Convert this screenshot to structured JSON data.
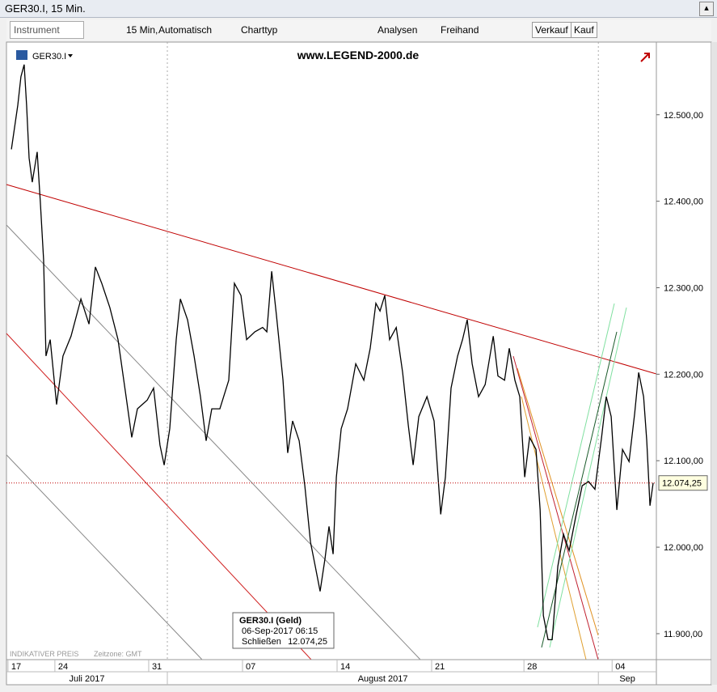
{
  "window": {
    "title": "GER30.I, 15 Min."
  },
  "toolbar": {
    "instrument_placeholder": "Instrument",
    "interval": "15 Min,",
    "scale": "Automatisch",
    "chart_type": "Charttyp",
    "analyses": "Analysen",
    "freehand": "Freihand",
    "sell": "Verkauf",
    "buy": "Kauf"
  },
  "chart_data": {
    "type": "line",
    "title": "www.LEGEND-2000.de",
    "series": [
      {
        "name": "GER30.I",
        "color": "#000000",
        "x": [
          -0.34,
          0,
          0.17,
          0.34,
          0.47,
          0.6,
          0.77,
          1.03,
          1.2,
          1.37,
          1.5,
          1.72,
          2.06,
          2.4,
          2.83,
          3.35,
          3.78,
          4.12,
          4.46,
          4.89,
          5.32,
          5.75,
          6.05,
          6.35,
          6.87,
          7.21,
          7.55,
          7.77,
          8.07,
          8.41,
          8.63,
          9.01,
          9.36,
          9.7,
          10,
          10.3,
          10.73,
          11.2,
          11.5,
          11.85,
          12.15,
          12.58,
          13,
          13.22,
          13.48,
          13.73,
          14.08,
          14.33,
          14.59,
          14.94,
          15.24,
          15.54,
          15.79,
          16.05,
          16.31,
          16.52,
          16.74,
          16.91,
          17.17,
          17.51,
          17.94,
          18.37,
          18.71,
          19.01,
          19.23,
          19.48,
          19.74,
          20.09,
          20.43,
          20.73,
          20.99,
          21.29,
          21.72,
          22.1,
          22.45,
          22.7,
          23,
          23.35,
          23.61,
          23.86,
          24.12,
          24.46,
          24.81,
          25.24,
          25.49,
          25.84,
          26.09,
          26.39,
          26.65,
          26.91,
          27.17,
          27.51,
          27.73,
          27.9,
          28.15,
          28.37,
          28.67,
          28.97,
          29.27,
          29.61,
          29.96,
          30.3,
          30.64,
          30.99,
          31.24,
          31.5,
          31.8,
          32.1,
          32.45,
          32.75,
          32.96,
          33.22,
          33.39,
          33.56,
          33.73
        ],
        "values": [
          12460,
          12511,
          12544,
          12558,
          12511,
          12450,
          12422,
          12457,
          12399,
          12333,
          12221,
          12240,
          12165,
          12221,
          12244,
          12287,
          12258,
          12324,
          12305,
          12277,
          12240,
          12174,
          12127,
          12160,
          12170,
          12184,
          12118,
          12095,
          12137,
          12240,
          12287,
          12263,
          12221,
          12174,
          12123,
          12160,
          12160,
          12193,
          12305,
          12291,
          12240,
          12249,
          12254,
          12249,
          12319,
          12268,
          12193,
          12109,
          12146,
          12123,
          12071,
          12006,
          11978,
          11949,
          11987,
          12024,
          11992,
          12081,
          12137,
          12160,
          12212,
          12193,
          12230,
          12282,
          12273,
          12291,
          12240,
          12254,
          12202,
          12141,
          12095,
          12151,
          12174,
          12146,
          12038,
          12081,
          12184,
          12221,
          12240,
          12263,
          12212,
          12174,
          12188,
          12244,
          12198,
          12193,
          12230,
          12193,
          12174,
          12081,
          12127,
          12113,
          12043,
          11921,
          11893,
          11893,
          11978,
          12015,
          11996,
          12034,
          12071,
          12076,
          12067,
          12127,
          12174,
          12151,
          12043,
          12113,
          12099,
          12155,
          12202,
          12174,
          12123,
          12048,
          12074.25
        ]
      }
    ],
    "xlim": [
      -0.6,
      33.9
    ],
    "xticks": [
      {
        "value": -0.52,
        "label": "17"
      },
      {
        "value": 1.97,
        "label": "24"
      },
      {
        "value": 6.95,
        "label": "31"
      },
      {
        "value": 11.93,
        "label": "07"
      },
      {
        "value": 16.95,
        "label": "14"
      },
      {
        "value": 21.97,
        "label": "21"
      },
      {
        "value": 26.87,
        "label": "28"
      },
      {
        "value": 31.55,
        "label": "04"
      }
    ],
    "month_ticks": [
      {
        "value": -0.6,
        "label": "Juli 2017"
      },
      {
        "value": 7.94,
        "label": "August 2017"
      },
      {
        "value": 30.82,
        "label": "Sep"
      }
    ],
    "ylim": [
      11870,
      12584
    ],
    "yticks": [
      {
        "value": 11900,
        "label": "11.900,00"
      },
      {
        "value": 12000,
        "label": "12.000,00"
      },
      {
        "value": 12100,
        "label": "12.100,00"
      },
      {
        "value": 12200,
        "label": "12.200,00"
      },
      {
        "value": 12300,
        "label": "12.300,00"
      },
      {
        "value": 12400,
        "label": "12.400,00"
      },
      {
        "value": 12500,
        "label": "12.500,00"
      }
    ],
    "price_line": {
      "value": 12074.25,
      "label": "12.074,25",
      "color": "#c00000"
    },
    "tooltip": {
      "title": "GER30.I (Geld)",
      "time": "06-Sep-2017 06:15",
      "field": "Schließen",
      "value": "12.074,25"
    },
    "footer": {
      "price_note": "INDIKATIVER PREIS",
      "timezone": "Zeitzone: GMT"
    }
  }
}
